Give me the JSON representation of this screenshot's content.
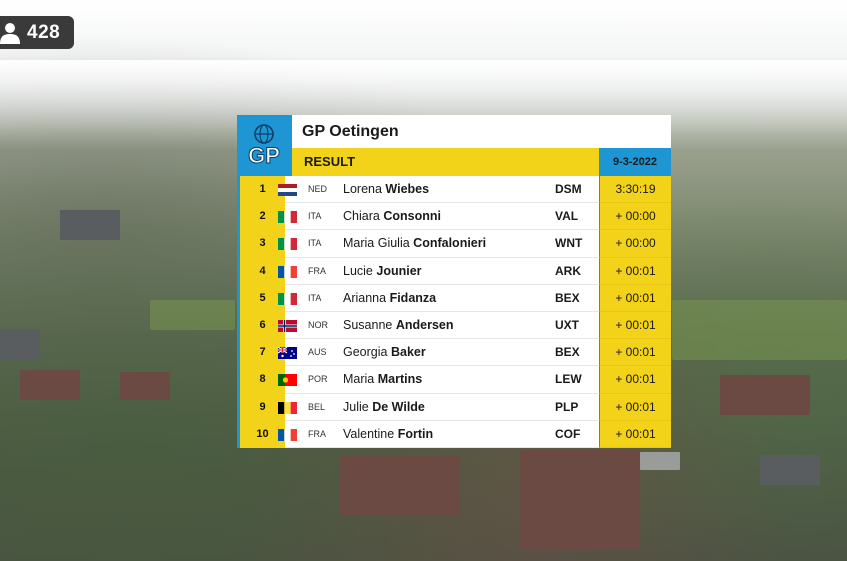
{
  "viewer_badge": {
    "icon": "person-icon",
    "count": "428"
  },
  "results": {
    "race_title": "GP Oetingen",
    "logo_text": "GP",
    "section_label": "RESULT",
    "date": "9-3-2022",
    "colors": {
      "accent_blue": "#1f96d4",
      "accent_yellow": "#f3d21a"
    },
    "rows": [
      {
        "pos": "1",
        "flag": "ned",
        "nat": "NED",
        "first": "Lorena",
        "last": "Wiebes",
        "team": "DSM",
        "time": "3:30:19"
      },
      {
        "pos": "2",
        "flag": "ita",
        "nat": "ITA",
        "first": "Chiara",
        "last": "Consonni",
        "team": "VAL",
        "time": "+ 00:00"
      },
      {
        "pos": "3",
        "flag": "ita",
        "nat": "ITA",
        "first": "Maria Giulia",
        "last": "Confalonieri",
        "team": "WNT",
        "time": "+ 00:00"
      },
      {
        "pos": "4",
        "flag": "fra",
        "nat": "FRA",
        "first": "Lucie",
        "last": "Jounier",
        "team": "ARK",
        "time": "+ 00:01"
      },
      {
        "pos": "5",
        "flag": "ita",
        "nat": "ITA",
        "first": "Arianna",
        "last": "Fidanza",
        "team": "BEX",
        "time": "+ 00:01"
      },
      {
        "pos": "6",
        "flag": "nor",
        "nat": "NOR",
        "first": "Susanne",
        "last": "Andersen",
        "team": "UXT",
        "time": "+ 00:01"
      },
      {
        "pos": "7",
        "flag": "aus",
        "nat": "AUS",
        "first": "Georgia",
        "last": "Baker",
        "team": "BEX",
        "time": "+ 00:01"
      },
      {
        "pos": "8",
        "flag": "por",
        "nat": "POR",
        "first": "Maria",
        "last": "Martins",
        "team": "LEW",
        "time": "+ 00:01"
      },
      {
        "pos": "9",
        "flag": "bel",
        "nat": "BEL",
        "first": "Julie",
        "last": "De Wilde",
        "team": "PLP",
        "time": "+ 00:01"
      },
      {
        "pos": "10",
        "flag": "fra",
        "nat": "FRA",
        "first": "Valentine",
        "last": "Fortin",
        "team": "COF",
        "time": "+ 00:01"
      }
    ]
  }
}
